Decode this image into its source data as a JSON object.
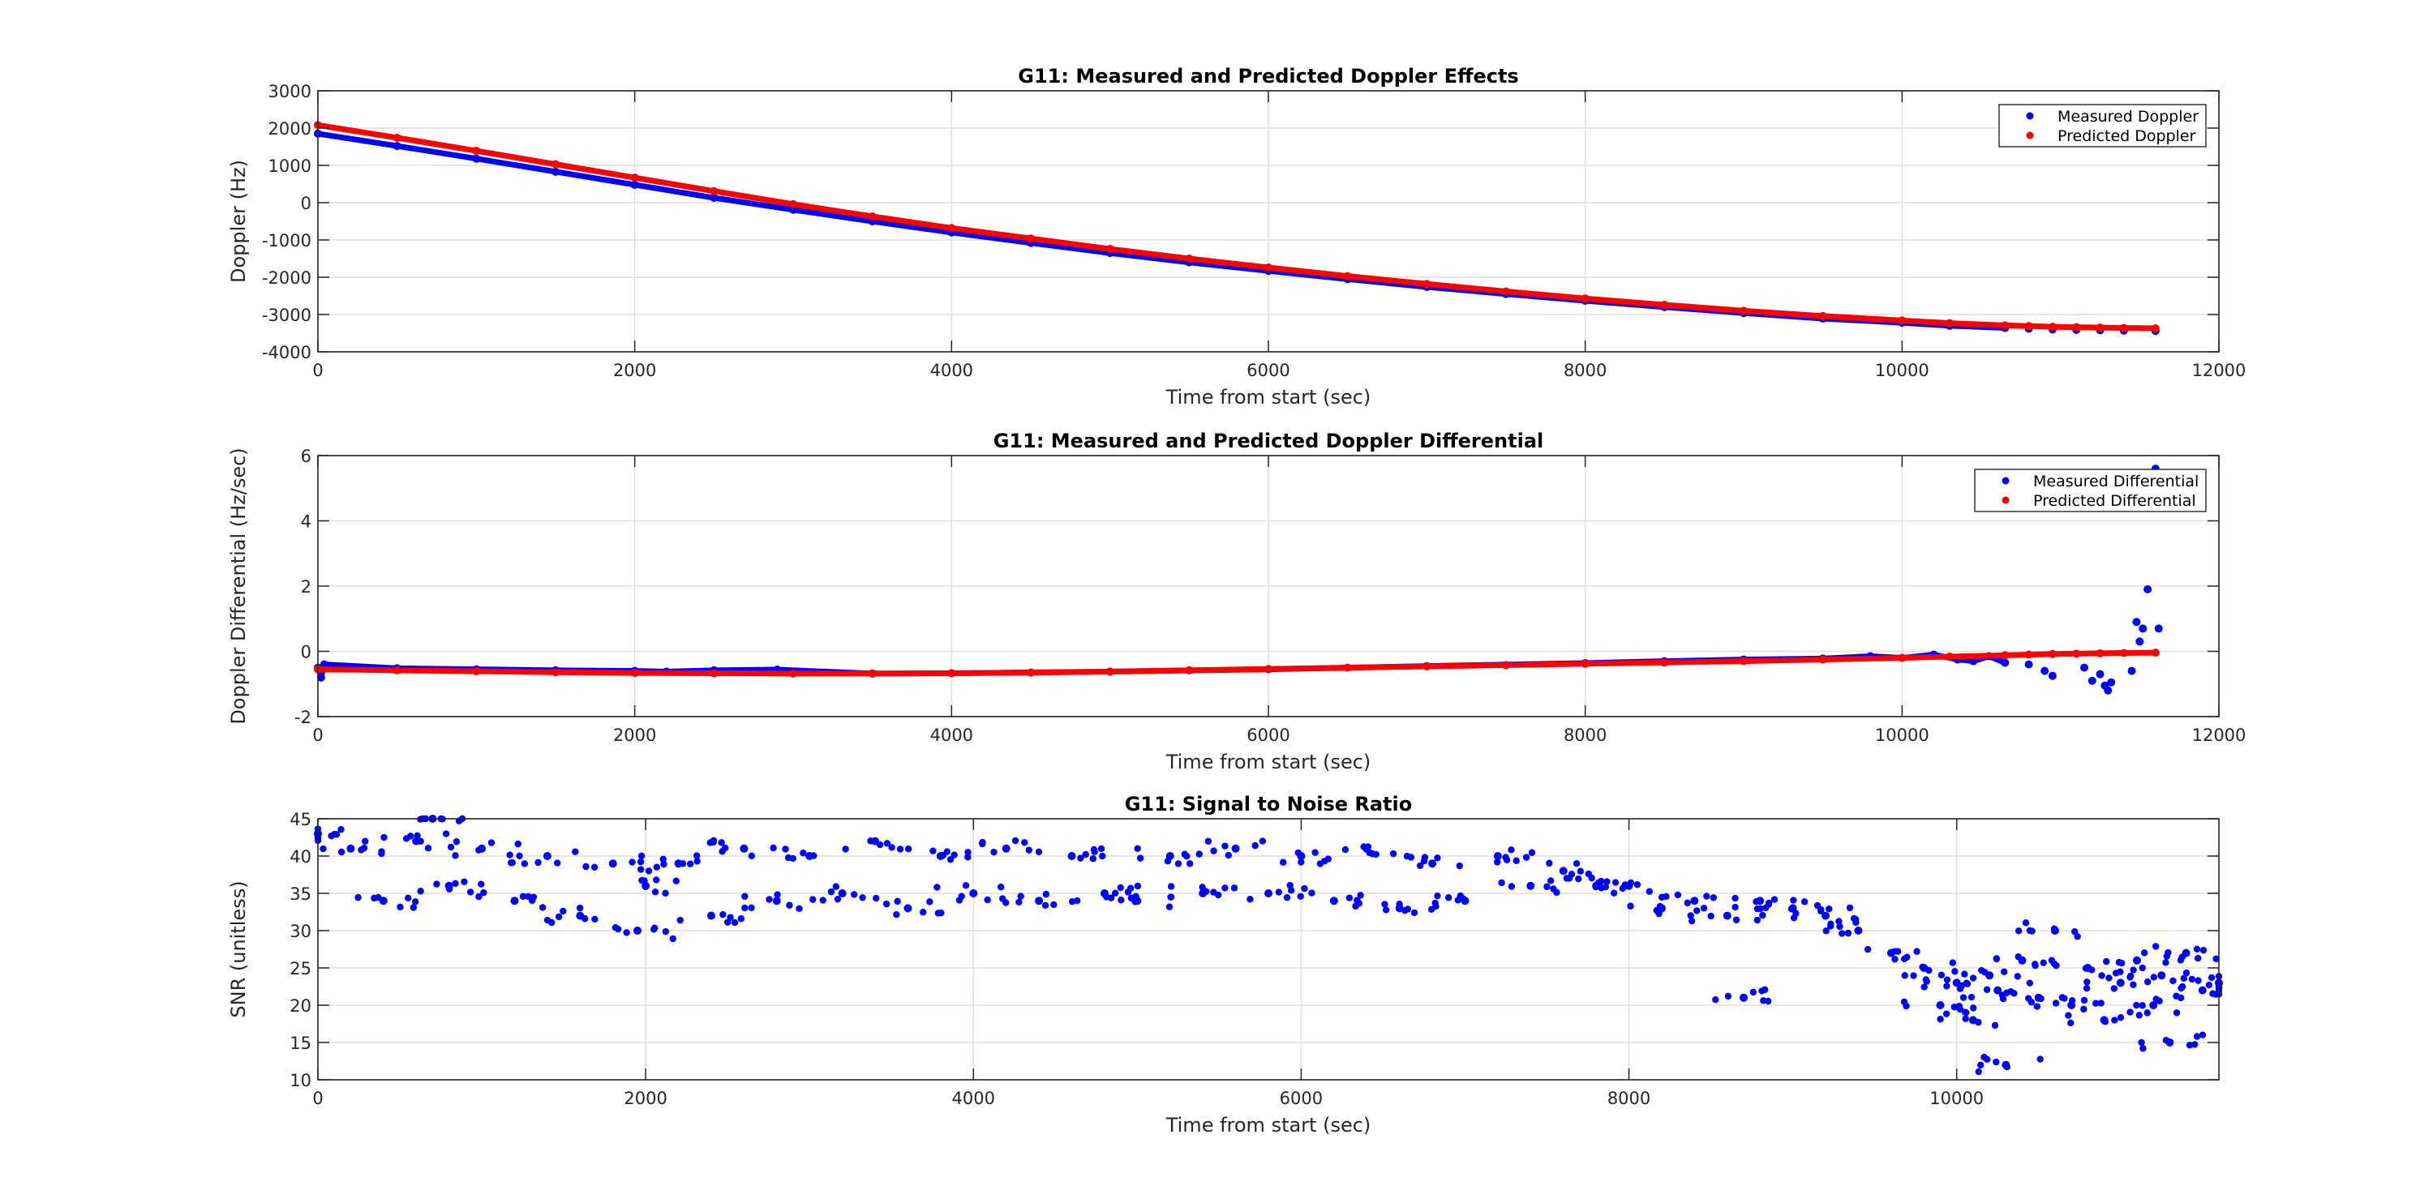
{
  "chart_data": [
    {
      "type": "scatter",
      "title": "G11: Measured and Predicted Doppler Effects",
      "xlabel": "Time from start (sec)",
      "ylabel": "Doppler (Hz)",
      "xlim": [
        0,
        12000
      ],
      "ylim": [
        -4000,
        3000
      ],
      "xticks": [
        0,
        2000,
        4000,
        6000,
        8000,
        10000,
        12000
      ],
      "yticks": [
        -4000,
        -3000,
        -2000,
        -1000,
        0,
        1000,
        2000,
        3000
      ],
      "grid": true,
      "legend_position": "top-right",
      "series": [
        {
          "name": "Measured Doppler",
          "color": "#0000ff",
          "x": [
            0,
            500,
            1000,
            1500,
            2000,
            2500,
            3000,
            3500,
            4000,
            4500,
            5000,
            5500,
            6000,
            6500,
            7000,
            7500,
            8000,
            8500,
            9000,
            9500,
            10000,
            10300,
            10650,
            10800,
            10950,
            11100,
            11250,
            11400,
            11600
          ],
          "y": [
            1850,
            1520,
            1180,
            830,
            480,
            130,
            -190,
            -500,
            -800,
            -1080,
            -1350,
            -1600,
            -1830,
            -2050,
            -2260,
            -2450,
            -2630,
            -2800,
            -2960,
            -3110,
            -3220,
            -3300,
            -3360,
            -3380,
            -3400,
            -3410,
            -3420,
            -3430,
            -3440
          ]
        },
        {
          "name": "Predicted Doppler",
          "color": "#ff0000",
          "x": [
            0,
            500,
            1000,
            1500,
            2000,
            2500,
            3000,
            3500,
            4000,
            4500,
            5000,
            5500,
            6000,
            6500,
            7000,
            7500,
            8000,
            8500,
            9000,
            9500,
            10000,
            10300,
            10650,
            10800,
            10950,
            11100,
            11250,
            11400,
            11600
          ],
          "y": [
            2080,
            1740,
            1390,
            1030,
            670,
            310,
            -40,
            -370,
            -680,
            -960,
            -1240,
            -1500,
            -1740,
            -1970,
            -2180,
            -2380,
            -2570,
            -2740,
            -2900,
            -3040,
            -3160,
            -3230,
            -3290,
            -3310,
            -3330,
            -3340,
            -3350,
            -3360,
            -3370
          ]
        }
      ]
    },
    {
      "type": "scatter",
      "title": "G11: Measured and Predicted Doppler Differential",
      "xlabel": "Time from start (sec)",
      "ylabel": "Doppler Differential (Hz/sec)",
      "xlim": [
        0,
        12000
      ],
      "ylim": [
        -2,
        6
      ],
      "xticks": [
        0,
        2000,
        4000,
        6000,
        8000,
        10000,
        12000
      ],
      "yticks": [
        -2,
        0,
        2,
        4,
        6
      ],
      "grid": true,
      "legend_position": "top-right",
      "series": [
        {
          "name": "Measured Differential",
          "color": "#0000ff",
          "x": [
            0,
            20,
            40,
            500,
            1000,
            1500,
            2000,
            2200,
            2500,
            2900,
            3500,
            4000,
            5000,
            6000,
            7000,
            8000,
            8500,
            9000,
            9500,
            9800,
            10000,
            10200,
            10350,
            10450,
            10550,
            10650,
            10800,
            10900,
            10950,
            11150,
            11200,
            11250,
            11280,
            11300,
            11320,
            11450,
            11480,
            11500,
            11520,
            11550,
            11600,
            11620
          ],
          "y": [
            -0.5,
            -0.8,
            -0.4,
            -0.52,
            -0.55,
            -0.58,
            -0.6,
            -0.62,
            -0.58,
            -0.56,
            -0.68,
            -0.67,
            -0.62,
            -0.55,
            -0.45,
            -0.36,
            -0.3,
            -0.25,
            -0.22,
            -0.15,
            -0.2,
            -0.1,
            -0.25,
            -0.3,
            -0.15,
            -0.35,
            -0.4,
            -0.6,
            -0.75,
            -0.5,
            -0.9,
            -0.7,
            -1.05,
            -1.2,
            -0.95,
            -0.6,
            0.9,
            0.3,
            0.7,
            1.9,
            5.6,
            0.7
          ]
        },
        {
          "name": "Predicted Differential",
          "color": "#ff0000",
          "x": [
            0,
            500,
            1000,
            1500,
            2000,
            2500,
            3000,
            3500,
            4000,
            4500,
            5000,
            5500,
            6000,
            6500,
            7000,
            7500,
            8000,
            8500,
            9000,
            9500,
            10000,
            10300,
            10650,
            10800,
            10950,
            11100,
            11250,
            11400,
            11600
          ],
          "y": [
            -0.55,
            -0.58,
            -0.61,
            -0.64,
            -0.66,
            -0.67,
            -0.68,
            -0.68,
            -0.67,
            -0.65,
            -0.62,
            -0.58,
            -0.54,
            -0.5,
            -0.46,
            -0.42,
            -0.38,
            -0.34,
            -0.3,
            -0.25,
            -0.2,
            -0.16,
            -0.12,
            -0.1,
            -0.08,
            -0.07,
            -0.06,
            -0.05,
            -0.04
          ]
        }
      ]
    },
    {
      "type": "scatter",
      "title": "G11: Signal to Noise Ratio",
      "xlabel": "Time from start (sec)",
      "ylabel": "SNR (unitless)",
      "xlim": [
        0,
        11600
      ],
      "ylim": [
        10,
        45
      ],
      "xticks": [
        0,
        2000,
        4000,
        6000,
        8000,
        10000
      ],
      "yticks": [
        10,
        15,
        20,
        25,
        30,
        35,
        40,
        45
      ],
      "grid": true,
      "series": [
        {
          "name": "SNR",
          "color": "#0000ff",
          "x": [
            0,
            200,
            400,
            600,
            700,
            800,
            1000,
            1200,
            1400,
            1600,
            1800,
            1950,
            2000,
            2200,
            2400,
            2600,
            2800,
            3000,
            3200,
            3400,
            3600,
            3800,
            4000,
            4200,
            4400,
            4600,
            4800,
            5000,
            5200,
            5400,
            5600,
            5800,
            6000,
            6200,
            6400,
            6600,
            6800,
            7000,
            7200,
            7400,
            7600,
            7800,
            8000,
            8200,
            8400,
            8600,
            8700,
            8800,
            9000,
            9200,
            9400,
            9600,
            9800,
            9900,
            10000,
            10100,
            10200,
            10250,
            10300,
            10400,
            10500,
            10600,
            10700,
            10800,
            10900,
            11000,
            11100,
            11200,
            11250,
            11300,
            11400,
            11500,
            11600
          ],
          "y": [
            43,
            41,
            34,
            42,
            45,
            36,
            41,
            34,
            40,
            32,
            39,
            30,
            36,
            39,
            32,
            41,
            34,
            40,
            35,
            42,
            33,
            40,
            35,
            41,
            34,
            40,
            35,
            34,
            40,
            35,
            41,
            35,
            40,
            34,
            41,
            33,
            39,
            34,
            40,
            36,
            38,
            36,
            36,
            33,
            34,
            32,
            21,
            34,
            33,
            32,
            30,
            27,
            25,
            20,
            23,
            18,
            24,
            22,
            12,
            26,
            21,
            30,
            20,
            25,
            18,
            23,
            26,
            20,
            24,
            15,
            27,
            22,
            23
          ]
        }
      ]
    }
  ]
}
